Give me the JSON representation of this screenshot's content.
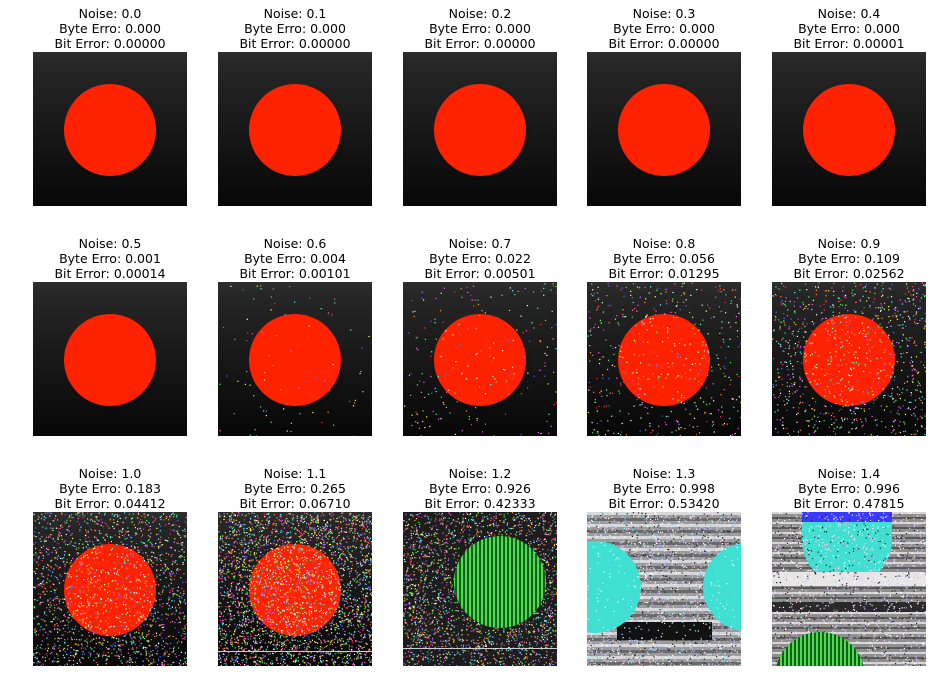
{
  "figure": {
    "panels": [
      {
        "noise": "Noise: 0.0",
        "byte": "Byte Erro: 0.000",
        "bit": "Bit Error: 0.00000",
        "noise_level": 0.0,
        "style": "clean"
      },
      {
        "noise": "Noise: 0.1",
        "byte": "Byte Erro: 0.000",
        "bit": "Bit Error: 0.00000",
        "noise_level": 0.1,
        "style": "clean"
      },
      {
        "noise": "Noise: 0.2",
        "byte": "Byte Erro: 0.000",
        "bit": "Bit Error: 0.00000",
        "noise_level": 0.2,
        "style": "clean"
      },
      {
        "noise": "Noise: 0.3",
        "byte": "Byte Erro: 0.000",
        "bit": "Bit Error: 0.00000",
        "noise_level": 0.3,
        "style": "clean"
      },
      {
        "noise": "Noise: 0.4",
        "byte": "Byte Erro: 0.000",
        "bit": "Bit Error: 0.00001",
        "noise_level": 0.4,
        "style": "clean"
      },
      {
        "noise": "Noise: 0.5",
        "byte": "Byte Erro: 0.001",
        "bit": "Bit Error: 0.00014",
        "noise_level": 0.5,
        "style": "clean"
      },
      {
        "noise": "Noise: 0.6",
        "byte": "Byte Erro: 0.004",
        "bit": "Bit Error: 0.00101",
        "noise_level": 0.6,
        "style": "speckle"
      },
      {
        "noise": "Noise: 0.7",
        "byte": "Byte Erro: 0.022",
        "bit": "Bit Error: 0.00501",
        "noise_level": 0.7,
        "style": "speckle"
      },
      {
        "noise": "Noise: 0.8",
        "byte": "Byte Erro: 0.056",
        "bit": "Bit Error: 0.01295",
        "noise_level": 0.8,
        "style": "speckle"
      },
      {
        "noise": "Noise: 0.9",
        "byte": "Byte Erro: 0.109",
        "bit": "Bit Error: 0.02562",
        "noise_level": 0.9,
        "style": "speckle"
      },
      {
        "noise": "Noise: 1.0",
        "byte": "Byte Erro: 0.183",
        "bit": "Bit Error: 0.04412",
        "noise_level": 1.0,
        "style": "speckle"
      },
      {
        "noise": "Noise: 1.1",
        "byte": "Byte Erro: 0.265",
        "bit": "Bit Error: 0.06710",
        "noise_level": 1.1,
        "style": "speckle"
      },
      {
        "noise": "Noise: 1.2",
        "byte": "Byte Erro: 0.926",
        "bit": "Bit Error: 0.42333",
        "noise_level": 1.2,
        "style": "striped-green"
      },
      {
        "noise": "Noise: 1.3",
        "byte": "Byte Erro: 0.998",
        "bit": "Bit Error: 0.53420",
        "noise_level": 1.3,
        "style": "cyan-pair"
      },
      {
        "noise": "Noise: 1.4",
        "byte": "Byte Erro: 0.996",
        "bit": "Bit Error: 0.47815",
        "noise_level": 1.4,
        "style": "shifted"
      }
    ],
    "colors": {
      "circle_red": "#ff2200",
      "bg_top": "#2e2e2e",
      "bg_bottom": "#070707",
      "green": "#45e04a",
      "cyan": "#3fe0d2",
      "blue": "#3b3bff"
    }
  }
}
